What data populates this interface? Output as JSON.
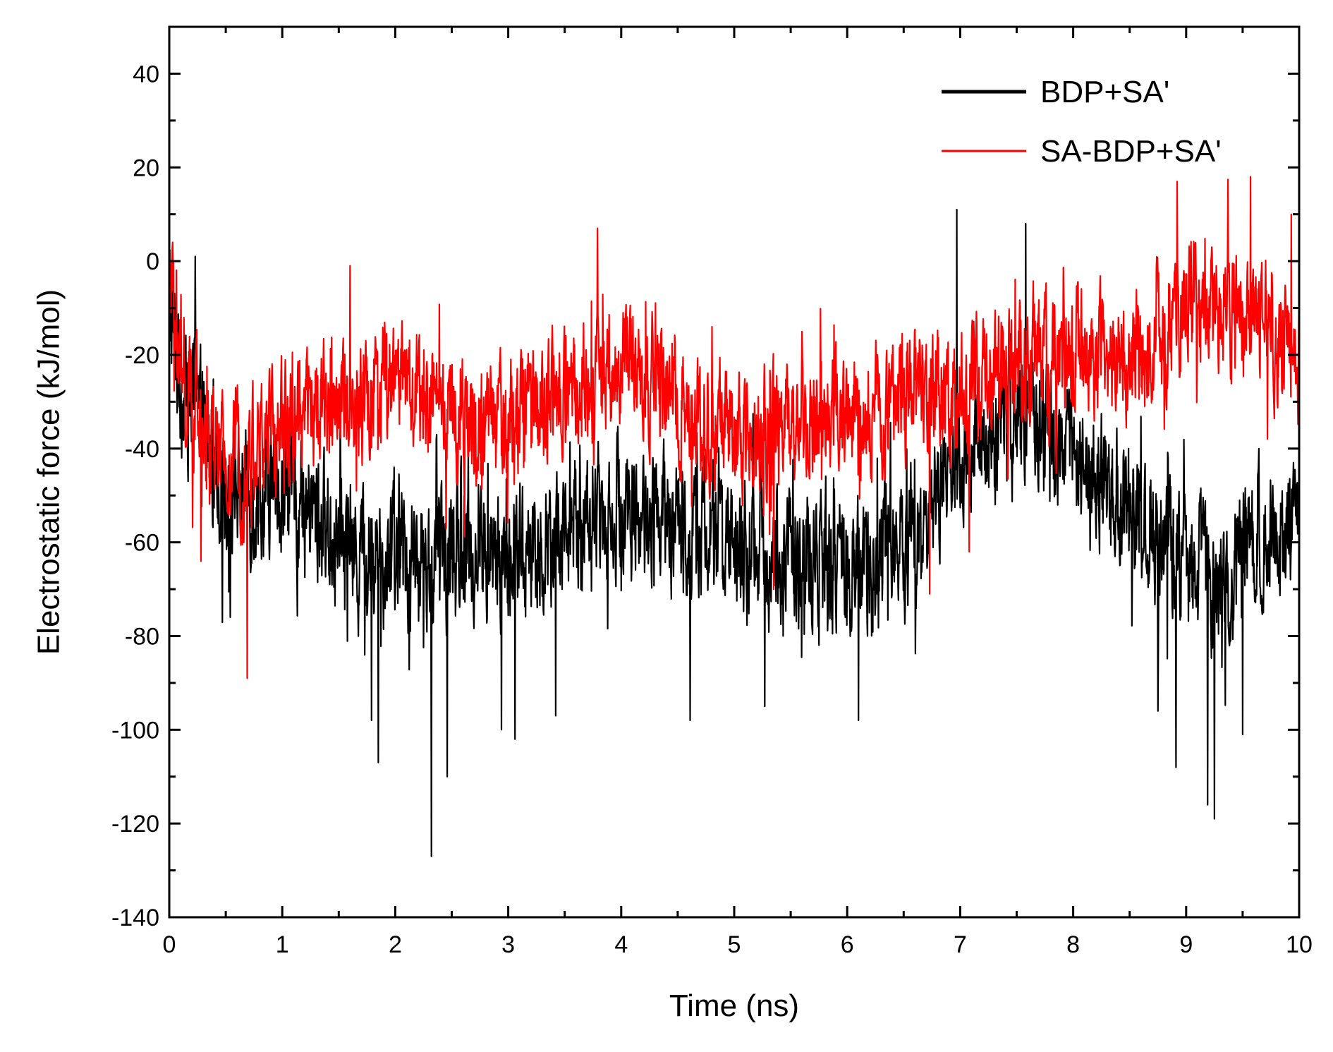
{
  "chart_data": {
    "type": "line",
    "title": "",
    "xlabel": "Time (ns)",
    "ylabel": "Electrostatic force (kJ/mol)",
    "xlim": [
      0,
      10
    ],
    "ylim": [
      -140,
      50
    ],
    "x_ticks": [
      0,
      1,
      2,
      3,
      4,
      5,
      6,
      7,
      8,
      9,
      10
    ],
    "y_ticks": [
      40,
      20,
      0,
      -20,
      -40,
      -60,
      -80,
      -100,
      -120,
      -140
    ],
    "grid": false,
    "legend_position": "top-right",
    "series": [
      {
        "name": "BDP+SA'",
        "color": "#000000",
        "points_per_ns": 300,
        "noise_amplitude": 11,
        "smooth_mean": {
          "x": [
            0,
            0.1,
            0.3,
            0.5,
            0.8,
            1.0,
            1.3,
            1.6,
            2.0,
            2.3,
            2.6,
            3.0,
            3.5,
            4.0,
            4.5,
            5.0,
            5.5,
            6.0,
            6.5,
            6.9,
            7.2,
            7.6,
            8.0,
            8.5,
            9.0,
            9.3,
            9.6,
            10.0
          ],
          "y": [
            -10,
            -25,
            -38,
            -48,
            -50,
            -48,
            -55,
            -62,
            -62,
            -66,
            -62,
            -64,
            -58,
            -52,
            -57,
            -60,
            -63,
            -66,
            -60,
            -45,
            -40,
            -32,
            -40,
            -52,
            -65,
            -70,
            -58,
            -52
          ]
        },
        "extremes": [
          {
            "x": 0.0,
            "y": 2
          },
          {
            "x": 0.23,
            "y": 1
          },
          {
            "x": 0.54,
            "y": -76
          },
          {
            "x": 1.79,
            "y": -98
          },
          {
            "x": 1.85,
            "y": -107
          },
          {
            "x": 2.32,
            "y": -127
          },
          {
            "x": 2.46,
            "y": -110
          },
          {
            "x": 2.94,
            "y": -100
          },
          {
            "x": 3.06,
            "y": -102
          },
          {
            "x": 3.42,
            "y": -97
          },
          {
            "x": 4.61,
            "y": -98
          },
          {
            "x": 5.27,
            "y": -95
          },
          {
            "x": 6.1,
            "y": -98
          },
          {
            "x": 6.97,
            "y": 11
          },
          {
            "x": 7.58,
            "y": 8
          },
          {
            "x": 8.75,
            "y": -96
          },
          {
            "x": 8.91,
            "y": -108
          },
          {
            "x": 9.19,
            "y": -116
          },
          {
            "x": 9.25,
            "y": -119
          },
          {
            "x": 9.5,
            "y": -101
          }
        ]
      },
      {
        "name": "SA-BDP+SA'",
        "color": "#ff0000",
        "points_per_ns": 300,
        "noise_amplitude": 10,
        "smooth_mean": {
          "x": [
            0,
            0.1,
            0.3,
            0.5,
            0.7,
            1.0,
            1.5,
            2.0,
            2.5,
            3.0,
            3.5,
            4.0,
            4.5,
            5.0,
            5.5,
            6.0,
            6.5,
            7.0,
            7.5,
            8.0,
            8.5,
            9.0,
            9.5,
            10.0
          ],
          "y": [
            -5,
            -25,
            -38,
            -45,
            -42,
            -35,
            -30,
            -27,
            -33,
            -35,
            -28,
            -22,
            -30,
            -38,
            -35,
            -33,
            -30,
            -28,
            -22,
            -18,
            -22,
            -8,
            -12,
            -20
          ]
        },
        "extremes": [
          {
            "x": 0.03,
            "y": 4
          },
          {
            "x": 0.28,
            "y": -64
          },
          {
            "x": 0.69,
            "y": -89
          },
          {
            "x": 1.6,
            "y": -1
          },
          {
            "x": 3.79,
            "y": 7
          },
          {
            "x": 5.35,
            "y": -70
          },
          {
            "x": 6.73,
            "y": -71
          },
          {
            "x": 7.08,
            "y": -62
          },
          {
            "x": 8.92,
            "y": 17
          },
          {
            "x": 9.57,
            "y": 18
          },
          {
            "x": 9.93,
            "y": 10
          }
        ]
      }
    ]
  }
}
